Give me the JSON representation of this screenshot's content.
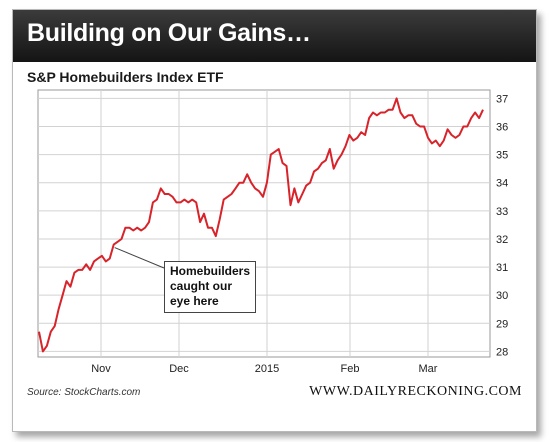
{
  "banner": {
    "title": "Building on Our Gains…"
  },
  "chart_data": {
    "type": "line",
    "title": "S&P Homebuilders Index ETF",
    "xlabel": "",
    "ylabel": "",
    "ylim": [
      27.8,
      37.3
    ],
    "y_ticks": [
      28,
      29,
      30,
      31,
      32,
      33,
      34,
      35,
      36,
      37
    ],
    "x_ticks": [
      "Nov",
      "Dec",
      "2015",
      "Feb",
      "Mar"
    ],
    "grid": true,
    "line_color": "#d8232a",
    "series": [
      {
        "values": [
          28.7,
          28.0,
          28.2,
          28.7,
          28.9,
          29.5,
          30.0,
          30.5,
          30.3,
          30.8,
          30.9,
          30.9,
          31.1,
          30.9,
          31.2,
          31.3,
          31.4,
          31.2,
          31.3,
          31.8,
          31.9,
          32.0,
          32.4,
          32.4,
          32.3,
          32.4,
          32.3,
          32.4,
          32.6,
          33.3,
          33.4,
          33.8,
          33.6,
          33.6,
          33.5,
          33.3,
          33.3,
          33.4,
          33.3,
          33.4,
          33.3,
          32.6,
          32.9,
          32.4,
          32.4,
          32.1,
          32.7,
          33.4,
          33.5,
          33.6,
          33.8,
          34.0,
          34.0,
          34.3,
          34.0,
          33.8,
          33.7,
          33.5,
          34.0,
          35.0,
          35.1,
          35.2,
          34.7,
          34.6,
          33.2,
          33.8,
          33.3,
          33.6,
          33.9,
          34.0,
          34.4,
          34.5,
          34.7,
          34.8,
          35.2,
          34.5,
          34.8,
          35.0,
          35.3,
          35.7,
          35.5,
          35.6,
          35.8,
          35.7,
          36.3,
          36.5,
          36.4,
          36.5,
          36.5,
          36.6,
          36.6,
          37.0,
          36.5,
          36.3,
          36.4,
          36.4,
          36.1,
          36.0,
          36.0,
          35.6,
          35.4,
          35.5,
          35.3,
          35.5,
          35.9,
          35.7,
          35.6,
          35.7,
          36.0,
          36.0,
          36.3,
          36.5,
          36.3,
          36.6
        ]
      }
    ],
    "annotation": {
      "lines": [
        "Homebuilders",
        "caught our",
        "eye here"
      ],
      "point_index": 19
    }
  },
  "footer": {
    "source": "Source: StockCharts.com",
    "brand": "WWW.DAILYRECKONING.COM"
  }
}
